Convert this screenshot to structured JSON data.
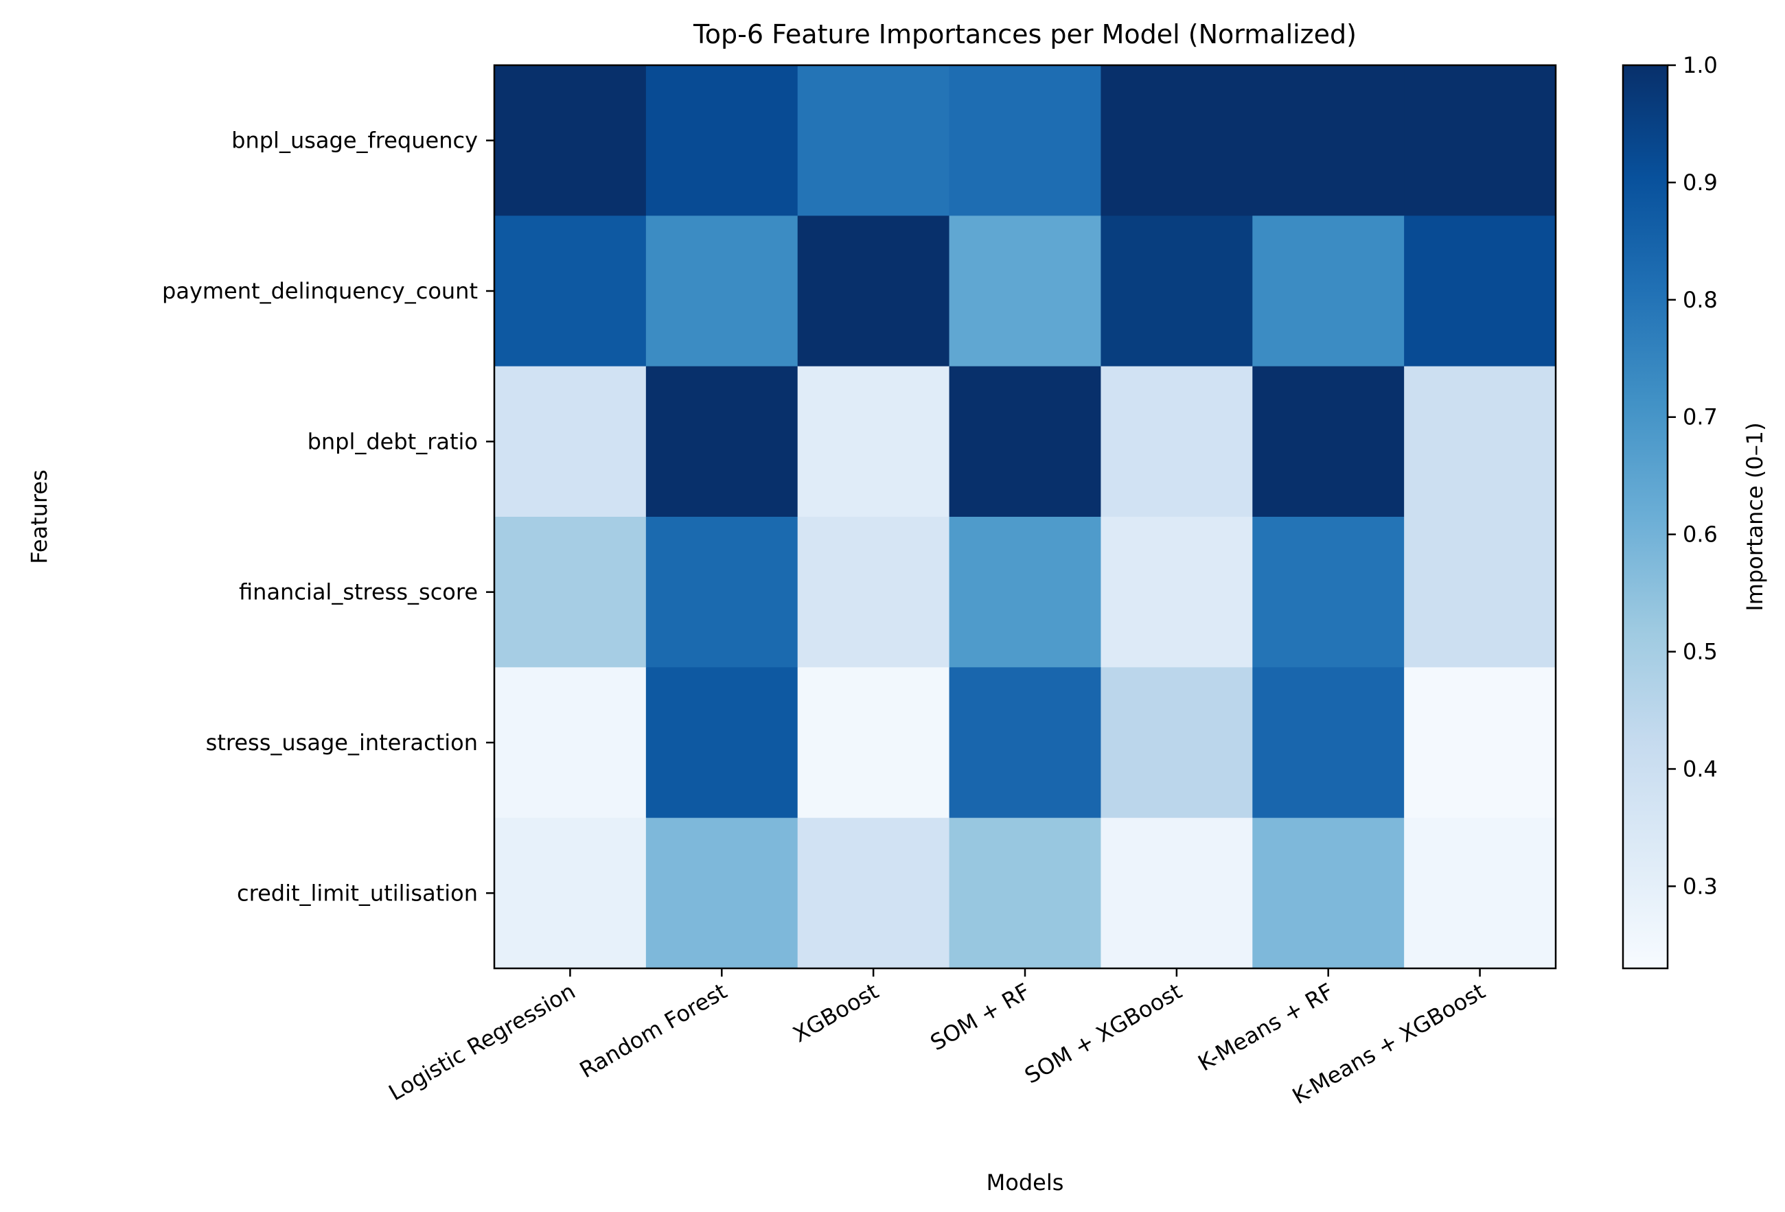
{
  "chart_data": {
    "type": "heatmap",
    "title": "Top-6 Feature Importances per Model (Normalized)",
    "xlabel": "Models",
    "ylabel": "Features",
    "colorbar_label": "Importance (0–1)",
    "colormap": "Blues",
    "x_categories": [
      "Logistic Regression",
      "Random Forest",
      "XGBoost",
      "SOM + RF",
      "SOM + XGBoost",
      "K-Means + RF",
      "K-Means + XGBoost"
    ],
    "y_categories": [
      "bnpl_usage_frequency",
      "payment_delinquency_count",
      "bnpl_debt_ratio",
      "financial_stress_score",
      "stress_usage_interaction",
      "credit_limit_utilisation"
    ],
    "values": [
      [
        1.0,
        0.92,
        0.8,
        0.82,
        1.0,
        1.0,
        1.0
      ],
      [
        0.88,
        0.73,
        1.0,
        0.64,
        0.96,
        0.73,
        0.92
      ],
      [
        0.38,
        1.0,
        0.32,
        1.0,
        0.38,
        1.0,
        0.4
      ],
      [
        0.5,
        0.83,
        0.36,
        0.68,
        0.33,
        0.8,
        0.4
      ],
      [
        0.26,
        0.88,
        0.25,
        0.84,
        0.45,
        0.84,
        0.24
      ],
      [
        0.29,
        0.58,
        0.38,
        0.53,
        0.27,
        0.58,
        0.26
      ]
    ],
    "colorbar_range": [
      0.23,
      1.0
    ],
    "colorbar_ticks": [
      "0.3",
      "0.4",
      "0.5",
      "0.6",
      "0.7",
      "0.8",
      "0.9",
      "1.0"
    ],
    "grid": false
  }
}
